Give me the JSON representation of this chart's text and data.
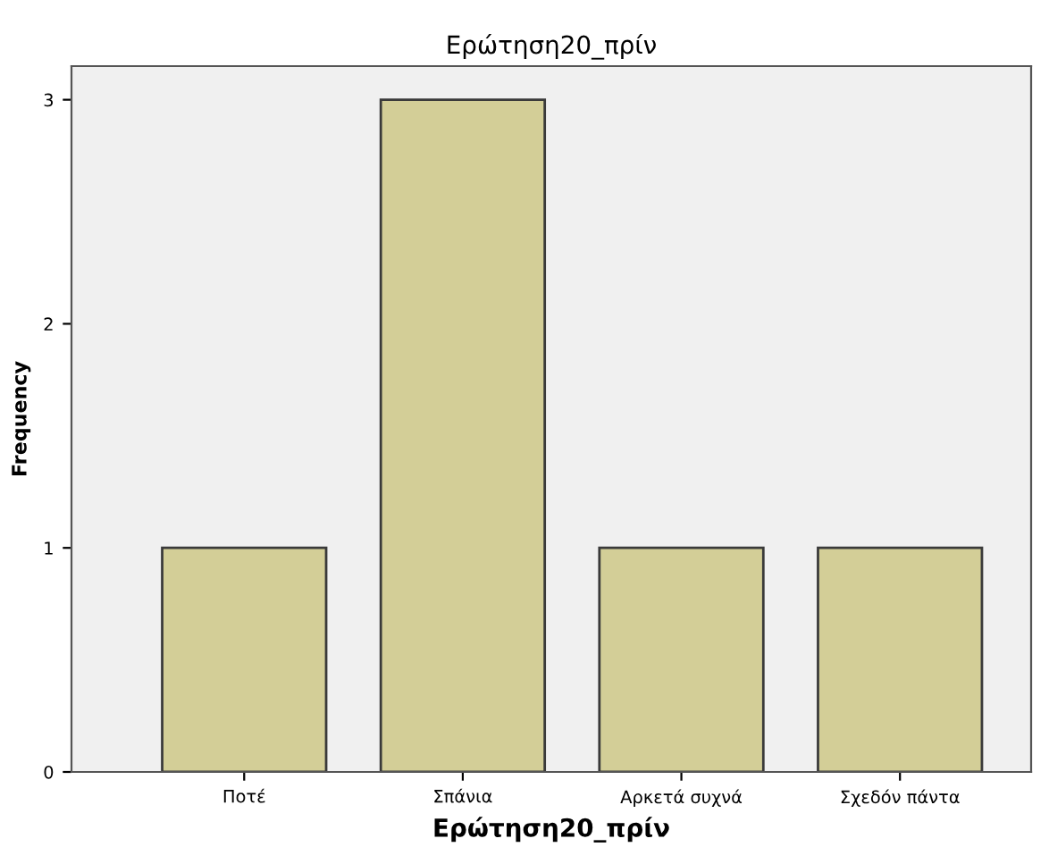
{
  "chart_data": {
    "type": "bar",
    "title": "Ερώτηση20_πρίν",
    "xlabel": "Ερώτηση20_πρίν",
    "ylabel": "Frequency",
    "categories": [
      "Ποτέ",
      "Σπάνια",
      "Αρκετά συχνά",
      "Σχεδόν πάντα"
    ],
    "values": [
      1,
      3,
      1,
      1
    ],
    "color": "#d3ce97",
    "ylim": [
      0,
      3.15
    ],
    "yticks": [
      0,
      1,
      2,
      3
    ],
    "grid": false
  }
}
